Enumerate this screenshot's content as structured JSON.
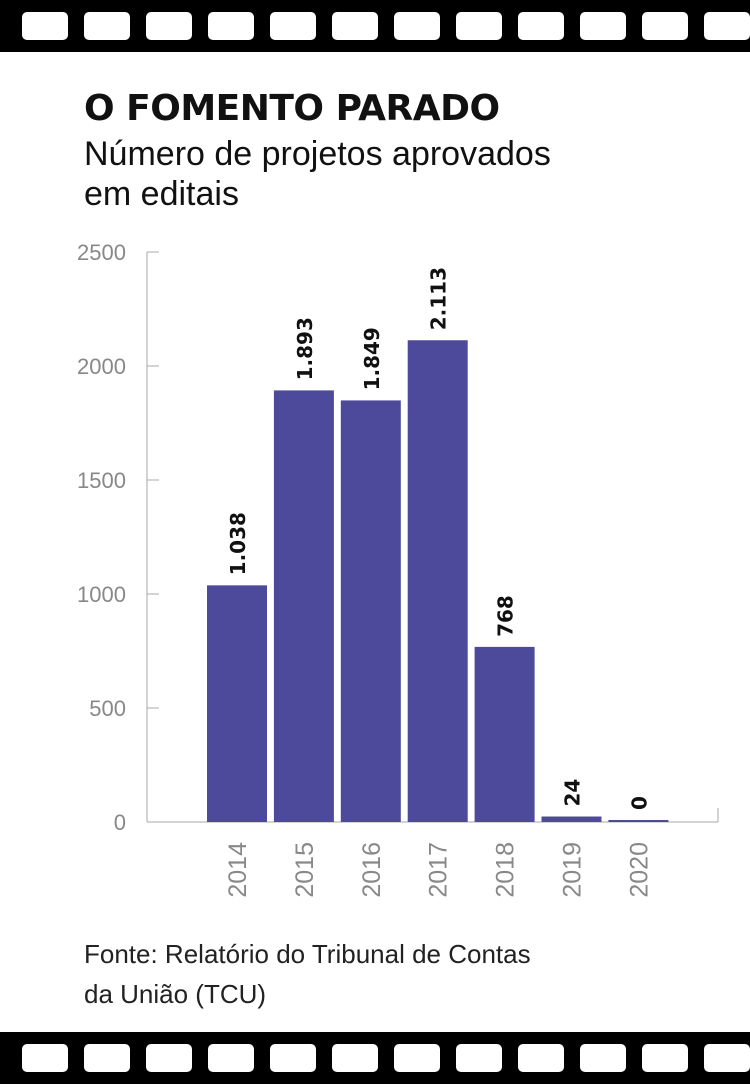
{
  "title": "O FOMENTO PARADO",
  "subtitle": "Número de projetos aprovados em editais",
  "source": "Fonte: Relatório do Tribunal de Contas da União (TCU)",
  "colors": {
    "bar": "#4e4a9b",
    "axis": "#aaaaaa",
    "tick_label": "#888888",
    "data_label": "#111111",
    "film": "#000000"
  },
  "chart_data": {
    "type": "bar",
    "title": "O FOMENTO PARADO",
    "subtitle": "Número de projetos aprovados em editais",
    "xlabel": "",
    "ylabel": "",
    "categories": [
      "2014",
      "2015",
      "2016",
      "2017",
      "2018",
      "2019",
      "2020"
    ],
    "values": [
      1038,
      1893,
      1849,
      2113,
      768,
      24,
      0
    ],
    "data_labels": [
      "1.038",
      "1.893",
      "1.849",
      "2.113",
      "768",
      "24",
      "0"
    ],
    "ylim": [
      0,
      2500
    ],
    "yticks": [
      0,
      500,
      1000,
      1500,
      2000,
      2500
    ],
    "grid": false,
    "legend": "none"
  }
}
